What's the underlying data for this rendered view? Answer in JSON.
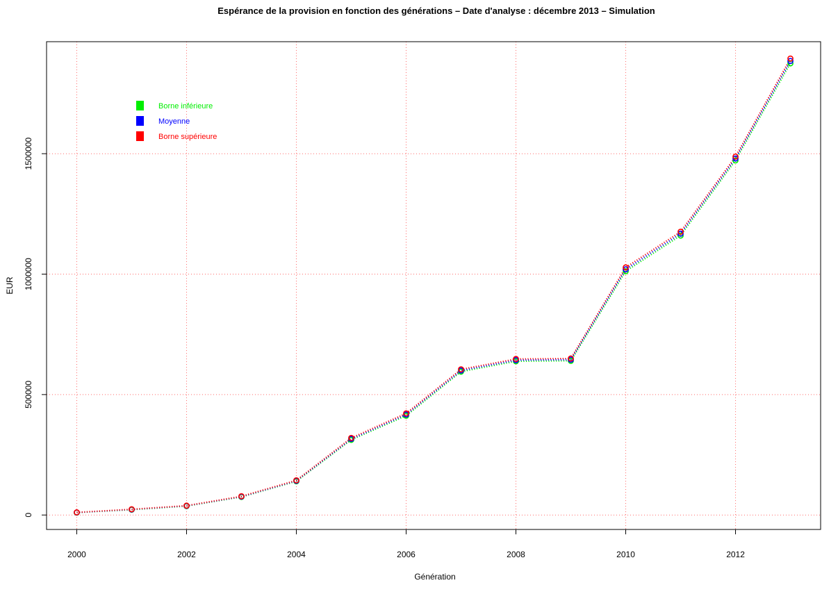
{
  "chart_data": {
    "type": "line",
    "title": "Espérance de la provision en fonction des générations – Date d'analyse : décembre 2013 – Simulation",
    "xlabel": "Génération",
    "ylabel": "EUR",
    "xlim": [
      1999.45,
      2013.55
    ],
    "ylim": [
      -60000,
      1965000
    ],
    "x_ticks": [
      "2000",
      "2002",
      "2004",
      "2006",
      "2008",
      "2010",
      "2012"
    ],
    "y_ticks": [
      "0",
      "500000",
      "1000000",
      "1500000"
    ],
    "grid": true,
    "grid_color": "#ff6a6a",
    "legend_position": "top-left",
    "x": [
      2000,
      2001,
      2002,
      2003,
      2004,
      2005,
      2006,
      2007,
      2008,
      2009,
      2010,
      2011,
      2012,
      2013
    ],
    "series": [
      {
        "name": "Borne inférieure",
        "color": "#00ee00",
        "values": [
          10000,
          22000,
          37000,
          75000,
          140000,
          312000,
          412000,
          595000,
          638000,
          640000,
          1012000,
          1160000,
          1472000,
          1875000
        ]
      },
      {
        "name": "Moyenne",
        "color": "#0000ff",
        "values": [
          10500,
          23000,
          38000,
          76500,
          142000,
          316000,
          417000,
          600000,
          643000,
          645000,
          1020000,
          1168000,
          1480000,
          1885000
        ]
      },
      {
        "name": "Borne supérieure",
        "color": "#ff0000",
        "values": [
          11000,
          24000,
          39000,
          78000,
          144000,
          320000,
          422000,
          605000,
          648000,
          650000,
          1028000,
          1176000,
          1488000,
          1895000
        ]
      }
    ]
  }
}
